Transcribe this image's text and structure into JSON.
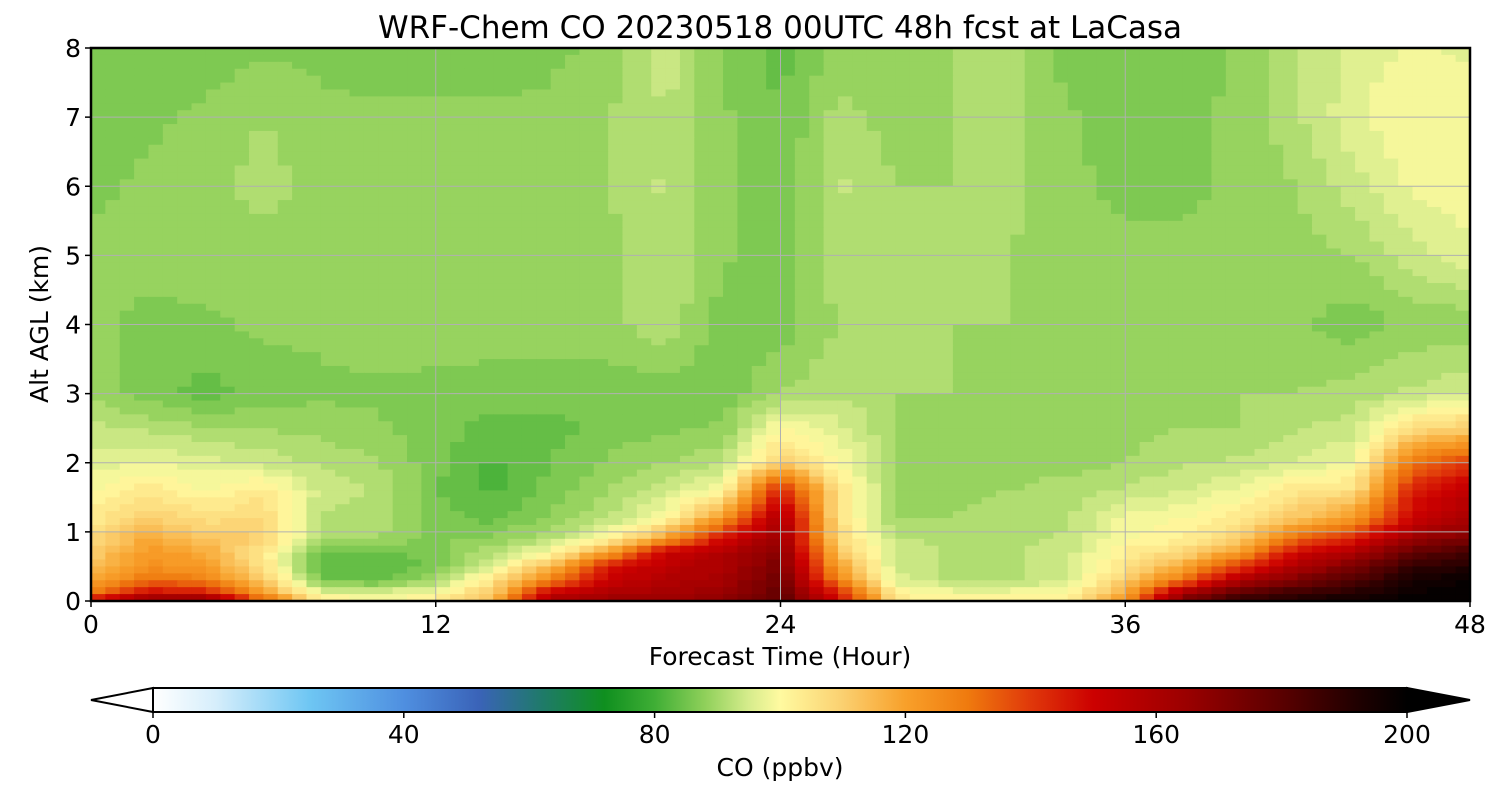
{
  "chart_data": {
    "type": "heatmap",
    "title": "WRF-Chem CO  20230518 00UTC 48h fcst at LaCasa",
    "xlabel": "Forecast Time (Hour)",
    "ylabel": "Alt AGL (km)",
    "xlim": [
      0,
      48
    ],
    "ylim": [
      0,
      8
    ],
    "x_ticks": [
      0,
      12,
      24,
      36,
      48
    ],
    "y_ticks": [
      0,
      1,
      2,
      3,
      4,
      5,
      6,
      7,
      8
    ],
    "grid": true,
    "colorbar": {
      "label": "CO  (ppbv)",
      "range": [
        0,
        200
      ],
      "ticks": [
        0,
        40,
        80,
        120,
        160,
        200
      ],
      "extend": "both",
      "orientation": "horizontal",
      "stops": [
        {
          "v": 0,
          "color": "#ffffff"
        },
        {
          "v": 10,
          "color": "#d6eefb"
        },
        {
          "v": 25,
          "color": "#6ec6f3"
        },
        {
          "v": 40,
          "color": "#4f8fe0"
        },
        {
          "v": 52,
          "color": "#3a63b8"
        },
        {
          "v": 62,
          "color": "#1f7a6a"
        },
        {
          "v": 72,
          "color": "#0f8f1f"
        },
        {
          "v": 80,
          "color": "#3fae35"
        },
        {
          "v": 88,
          "color": "#8fd05a"
        },
        {
          "v": 95,
          "color": "#d6ec8c"
        },
        {
          "v": 100,
          "color": "#fffaa0"
        },
        {
          "v": 110,
          "color": "#fbd070"
        },
        {
          "v": 120,
          "color": "#f8a02a"
        },
        {
          "v": 130,
          "color": "#ef7a0e"
        },
        {
          "v": 140,
          "color": "#e0380a"
        },
        {
          "v": 150,
          "color": "#cc0000"
        },
        {
          "v": 165,
          "color": "#9a0000"
        },
        {
          "v": 180,
          "color": "#5a0000"
        },
        {
          "v": 192,
          "color": "#200000"
        },
        {
          "v": 200,
          "color": "#000000"
        }
      ]
    },
    "x": [
      0,
      2,
      4,
      6,
      8,
      10,
      12,
      14,
      16,
      18,
      20,
      22,
      24,
      26,
      28,
      30,
      32,
      34,
      36,
      38,
      40,
      42,
      44,
      46,
      48
    ],
    "y": [
      0,
      0.1,
      0.3,
      0.5,
      0.7,
      0.9,
      1.2,
      1.6,
      2.0,
      2.5,
      3,
      4,
      5,
      6,
      7,
      8
    ],
    "z": [
      [
        150,
        175,
        172,
        135,
        104,
        101,
        102,
        115,
        160,
        165,
        166,
        168,
        180,
        150,
        105,
        101,
        101,
        103,
        122,
        172,
        188,
        192,
        196,
        200,
        200
      ],
      [
        130,
        150,
        148,
        122,
        98,
        97,
        100,
        112,
        155,
        160,
        162,
        165,
        178,
        145,
        102,
        99,
        99,
        101,
        118,
        165,
        182,
        188,
        192,
        198,
        200
      ],
      [
        118,
        132,
        128,
        110,
        86,
        84,
        90,
        105,
        128,
        152,
        158,
        162,
        175,
        128,
        96,
        92,
        92,
        95,
        110,
        130,
        160,
        172,
        182,
        194,
        198
      ],
      [
        112,
        124,
        120,
        106,
        82,
        82,
        86,
        96,
        115,
        146,
        155,
        160,
        172,
        120,
        94,
        92,
        92,
        94,
        105,
        118,
        140,
        160,
        172,
        188,
        192
      ],
      [
        110,
        122,
        118,
        104,
        84,
        84,
        86,
        92,
        100,
        120,
        152,
        158,
        170,
        112,
        94,
        92,
        92,
        94,
        103,
        108,
        122,
        150,
        160,
        178,
        185
      ],
      [
        107,
        118,
        112,
        110,
        90,
        90,
        87,
        88,
        92,
        100,
        120,
        148,
        165,
        108,
        93,
        91,
        91,
        93,
        100,
        102,
        110,
        132,
        145,
        165,
        172
      ],
      [
        103,
        110,
        106,
        108,
        92,
        92,
        86,
        84,
        88,
        92,
        100,
        122,
        160,
        106,
        90,
        90,
        91,
        92,
        98,
        100,
        104,
        112,
        122,
        150,
        160
      ],
      [
        100,
        104,
        100,
        104,
        94,
        92,
        85,
        82,
        86,
        90,
        94,
        100,
        145,
        105,
        90,
        89,
        90,
        91,
        93,
        95,
        98,
        105,
        106,
        145,
        155
      ],
      [
        96,
        98,
        96,
        94,
        92,
        90,
        86,
        82,
        85,
        88,
        90,
        92,
        110,
        100,
        90,
        89,
        89,
        89,
        90,
        92,
        93,
        95,
        98,
        130,
        140
      ],
      [
        93,
        92,
        90,
        90,
        89,
        88,
        86,
        84,
        84,
        86,
        87,
        88,
        100,
        96,
        90,
        89,
        89,
        89,
        89,
        90,
        90,
        92,
        94,
        106,
        110
      ],
      [
        90,
        86,
        84,
        86,
        87,
        87,
        86,
        86,
        86,
        86,
        86,
        86,
        90,
        92,
        90,
        90,
        89,
        89,
        89,
        89,
        90,
        90,
        91,
        93,
        95
      ],
      [
        88,
        87,
        87,
        88,
        88,
        89,
        90,
        89,
        89,
        89,
        92,
        86,
        86,
        90,
        90,
        90,
        90,
        88,
        88,
        88,
        88,
        88,
        86,
        88,
        88
      ],
      [
        88,
        88,
        89,
        89,
        89,
        90,
        90,
        90,
        89,
        89,
        92,
        88,
        86,
        92,
        90,
        90,
        90,
        88,
        88,
        88,
        88,
        89,
        90,
        94,
        97
      ],
      [
        87,
        88,
        89,
        91,
        89,
        89,
        89,
        89,
        89,
        90,
        93,
        88,
        85,
        93,
        90,
        90,
        91,
        88,
        87,
        87,
        88,
        90,
        94,
        98,
        99
      ],
      [
        86,
        87,
        88,
        90,
        88,
        88,
        88,
        88,
        88,
        90,
        92,
        88,
        85,
        91,
        89,
        90,
        91,
        88,
        86,
        87,
        88,
        92,
        97,
        100,
        99
      ],
      [
        86,
        86,
        86,
        87,
        87,
        86,
        86,
        86,
        87,
        88,
        95,
        87,
        84,
        88,
        88,
        90,
        91,
        86,
        85,
        86,
        88,
        92,
        96,
        98,
        97
      ]
    ]
  }
}
